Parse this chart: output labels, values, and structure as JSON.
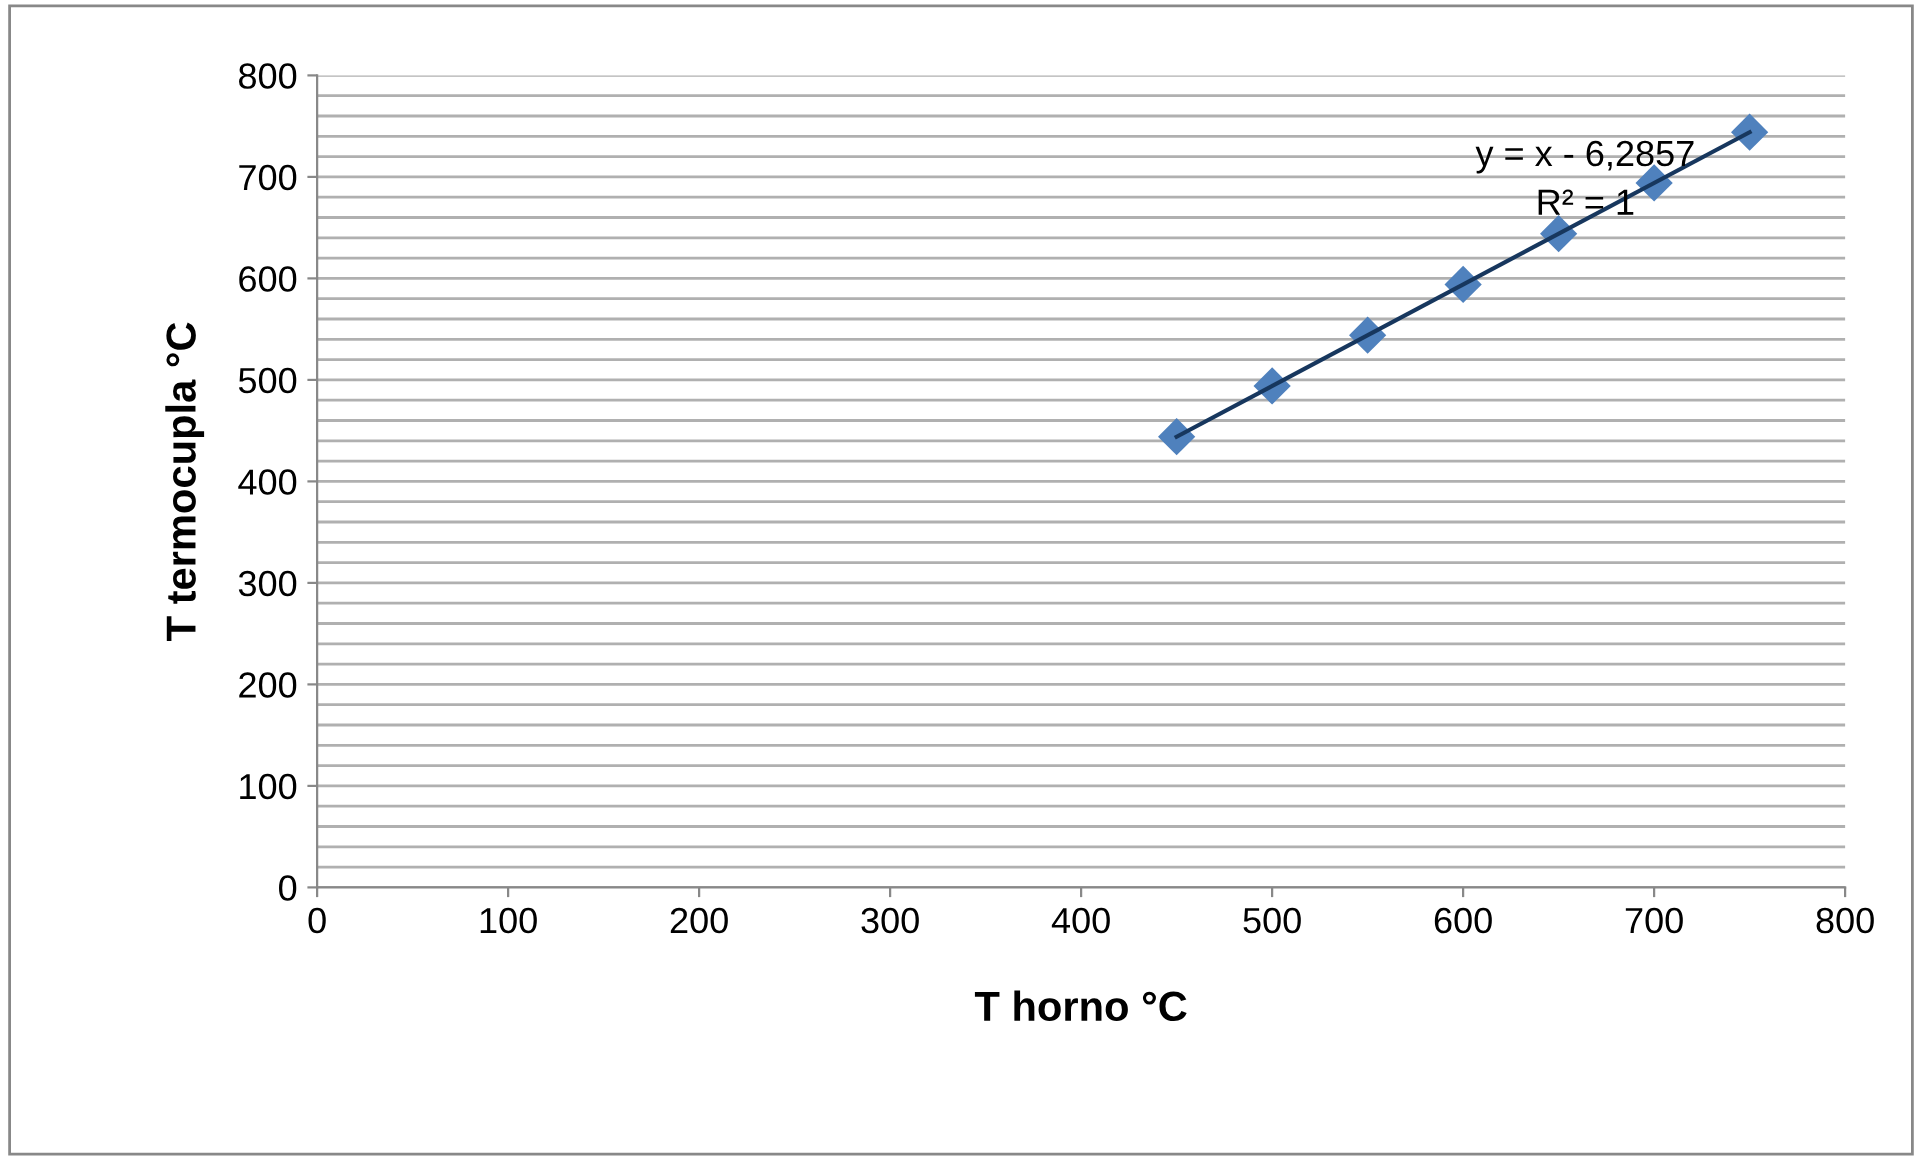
{
  "chart_data": {
    "type": "scatter",
    "xlabel": "T horno °C",
    "ylabel": "T termocupla °C",
    "x": [
      450,
      500,
      550,
      600,
      650,
      700,
      750
    ],
    "series": [
      {
        "color": "#4f81bd",
        "marker": "diamond",
        "values": [
          444,
          494,
          544,
          594,
          644,
          694,
          744
        ]
      },
      {
        "type": "line",
        "color": "#17375e",
        "marker": "none",
        "line_style": "solid",
        "x": [
          450,
          750
        ],
        "values": [
          444,
          744
        ]
      }
    ],
    "xlim": [
      0,
      800
    ],
    "xticks": [
      0,
      100,
      200,
      300,
      400,
      500,
      600,
      700,
      800
    ],
    "ylim": [
      0,
      800
    ],
    "yticks": [
      0,
      {
        "value": 20,
        "label": null
      },
      {
        "value": 40,
        "label": null
      },
      {
        "value": 60,
        "label": null
      },
      {
        "value": 80,
        "label": null
      },
      100,
      {
        "value": 120,
        "label": null
      },
      {
        "value": 140,
        "label": null
      },
      {
        "value": 160,
        "label": null
      },
      {
        "value": 180,
        "label": null
      },
      200,
      {
        "value": 220,
        "label": null
      },
      {
        "value": 240,
        "label": null
      },
      {
        "value": 260,
        "label": null
      },
      {
        "value": 280,
        "label": null
      },
      300,
      {
        "value": 320,
        "label": null
      },
      {
        "value": 340,
        "label": null
      },
      {
        "value": 360,
        "label": null
      },
      {
        "value": 380,
        "label": null
      },
      400,
      {
        "value": 420,
        "label": null
      },
      {
        "value": 440,
        "label": null
      },
      {
        "value": 460,
        "label": null
      },
      {
        "value": 480,
        "label": null
      },
      500,
      {
        "value": 520,
        "label": null
      },
      {
        "value": 540,
        "label": null
      },
      {
        "value": 560,
        "label": null
      },
      {
        "value": 580,
        "label": null
      },
      600,
      {
        "value": 620,
        "label": null
      },
      {
        "value": 640,
        "label": null
      },
      {
        "value": 660,
        "label": null
      },
      {
        "value": 680,
        "label": null
      },
      700,
      {
        "value": 720,
        "label": null
      },
      {
        "value": 740,
        "label": null
      },
      {
        "value": 760,
        "label": null
      },
      {
        "value": 780,
        "label": null
      },
      800
    ],
    "grid": "y",
    "legend": false,
    "annotations": [
      "y = x - 6,2857",
      "R² = 1"
    ]
  }
}
